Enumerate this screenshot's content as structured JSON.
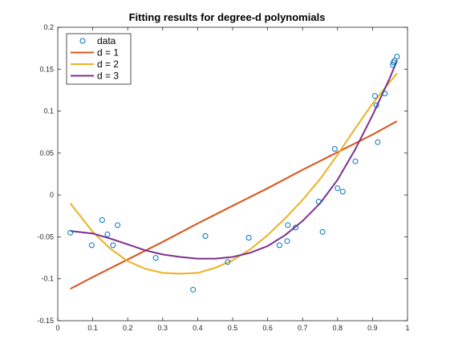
{
  "chart_data": {
    "type": "scatter",
    "title": "Fitting results for degree-d polynomials",
    "xlabel": "",
    "ylabel": "",
    "xlim": [
      0,
      1
    ],
    "ylim": [
      -0.15,
      0.2
    ],
    "xticks": [
      "0",
      "0.1",
      "0.2",
      "0.3",
      "0.4",
      "0.5",
      "0.6",
      "0.7",
      "0.8",
      "0.9",
      "1"
    ],
    "yticks": [
      "-0.15",
      "-0.1",
      "-0.05",
      "0",
      "0.05",
      "0.1",
      "0.15",
      "0.2"
    ],
    "grid": false,
    "legend_position": "top-left",
    "series": [
      {
        "name": "data",
        "kind": "markers",
        "color": "#0072BD",
        "x": [
          0.036,
          0.097,
          0.127,
          0.142,
          0.158,
          0.171,
          0.28,
          0.387,
          0.422,
          0.486,
          0.546,
          0.634,
          0.656,
          0.658,
          0.68,
          0.746,
          0.757,
          0.792,
          0.8,
          0.815,
          0.851,
          0.907,
          0.911,
          0.915,
          0.935,
          0.958,
          0.96,
          0.963,
          0.97
        ],
        "y": [
          -0.045,
          -0.06,
          -0.03,
          -0.047,
          -0.06,
          -0.036,
          -0.075,
          -0.113,
          -0.049,
          -0.08,
          -0.051,
          -0.06,
          -0.055,
          -0.036,
          -0.039,
          -0.008,
          -0.044,
          0.055,
          0.008,
          0.004,
          0.04,
          0.118,
          0.107,
          0.063,
          0.121,
          0.155,
          0.158,
          0.16,
          0.165
        ]
      },
      {
        "name": "d = 1",
        "kind": "line",
        "color": "#D95319",
        "x": [
          0.036,
          0.1,
          0.2,
          0.3,
          0.4,
          0.5,
          0.6,
          0.7,
          0.8,
          0.9,
          0.97
        ],
        "y": [
          -0.112,
          -0.098,
          -0.077,
          -0.056,
          -0.034,
          -0.013,
          0.008,
          0.03,
          0.051,
          0.072,
          0.088
        ]
      },
      {
        "name": "d = 2",
        "kind": "line",
        "color": "#EDB120",
        "x": [
          0.036,
          0.1,
          0.15,
          0.2,
          0.25,
          0.3,
          0.35,
          0.4,
          0.45,
          0.5,
          0.55,
          0.6,
          0.65,
          0.7,
          0.75,
          0.8,
          0.85,
          0.9,
          0.95,
          0.97
        ],
        "y": [
          -0.01,
          -0.044,
          -0.064,
          -0.079,
          -0.088,
          -0.093,
          -0.094,
          -0.093,
          -0.087,
          -0.078,
          -0.065,
          -0.048,
          -0.028,
          -0.006,
          0.019,
          0.048,
          0.079,
          0.109,
          0.135,
          0.145
        ]
      },
      {
        "name": "d = 3",
        "kind": "line",
        "color": "#7E2F8E",
        "x": [
          0.036,
          0.1,
          0.15,
          0.2,
          0.25,
          0.3,
          0.35,
          0.4,
          0.45,
          0.5,
          0.55,
          0.6,
          0.65,
          0.7,
          0.75,
          0.8,
          0.85,
          0.9,
          0.95,
          0.97
        ],
        "y": [
          -0.043,
          -0.046,
          -0.052,
          -0.059,
          -0.066,
          -0.071,
          -0.074,
          -0.076,
          -0.076,
          -0.074,
          -0.069,
          -0.061,
          -0.048,
          -0.031,
          -0.01,
          0.018,
          0.054,
          0.095,
          0.14,
          0.16
        ]
      }
    ]
  }
}
